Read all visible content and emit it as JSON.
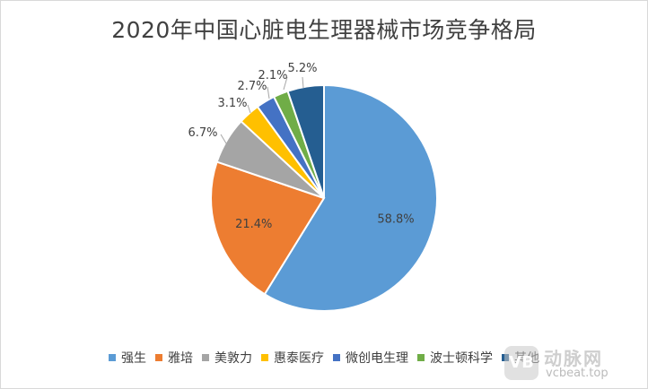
{
  "chart_data": {
    "type": "pie",
    "title": "2020年中国心脏电生理器械市场竞争格局",
    "categories": [
      "强生",
      "雅培",
      "美敦力",
      "惠泰医疗",
      "微创电生理",
      "波士顿科学",
      "其他"
    ],
    "values": [
      58.8,
      21.4,
      6.7,
      3.1,
      2.7,
      2.1,
      5.2
    ],
    "labels": [
      "58.8%",
      "21.4%",
      "6.7%",
      "3.1%",
      "2.7%",
      "2.1%",
      "5.2%"
    ],
    "colors": [
      "#5b9bd5",
      "#ed7d31",
      "#a5a5a5",
      "#ffc000",
      "#4472c4",
      "#70ad47",
      "#255e91"
    ],
    "legend": "bottom"
  },
  "watermark": {
    "logo": "VB",
    "name": "动脉网",
    "url": "vcbeat.top"
  }
}
